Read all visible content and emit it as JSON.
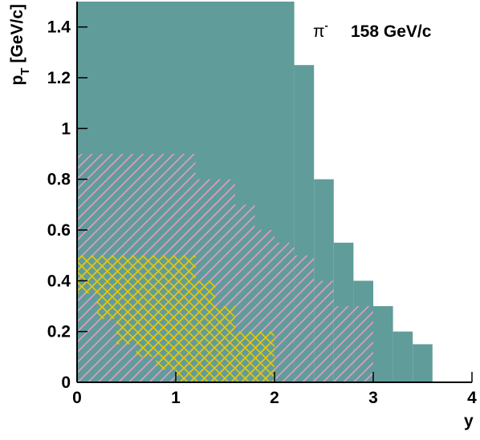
{
  "chart_data": {
    "type": "step-region",
    "annotation": {
      "particle": "π",
      "charge": "-",
      "energy": "158 GeV/c"
    },
    "xlabel": "y",
    "ylabel": {
      "symbol": "p",
      "subscript": "T",
      "unit": "[GeV/c]"
    },
    "xlim": [
      0,
      4
    ],
    "xticks": [
      0,
      1,
      2,
      3,
      4
    ],
    "ylim": [
      0,
      1.5
    ],
    "yticks": [
      0,
      0.2,
      0.4,
      0.6,
      0.8,
      1,
      1.2,
      1.4
    ],
    "series": [
      {
        "color": "#609c9a",
        "hatch": "solid",
        "edges": [
          0,
          2.2,
          2.4,
          2.6,
          2.8,
          3.0,
          3.2,
          3.4,
          3.6
        ],
        "upper": [
          1.5,
          1.25,
          0.8,
          0.55,
          0.4,
          0.3,
          0.2,
          0.15
        ]
      },
      {
        "color": "#e89ac8",
        "hatch": "diagonal",
        "edges": [
          0,
          1.2,
          1.6,
          1.8,
          2.0,
          2.2,
          2.4,
          2.6,
          3.0
        ],
        "upper": [
          0.9,
          0.8,
          0.7,
          0.6,
          0.55,
          0.5,
          0.4,
          0.3
        ]
      },
      {
        "color": "#e8c800",
        "hatch": "cross",
        "edges": [
          0,
          0.2,
          0.4,
          0.6,
          0.8,
          1.0,
          1.2,
          1.4,
          1.6,
          1.8,
          2.0
        ],
        "upper": [
          0.5,
          0.5,
          0.5,
          0.5,
          0.5,
          0.5,
          0.4,
          0.3,
          0.2,
          0.2
        ],
        "lower": [
          0.35,
          0.25,
          0.15,
          0.1,
          0.05,
          0,
          0,
          0,
          0,
          0
        ]
      }
    ]
  }
}
